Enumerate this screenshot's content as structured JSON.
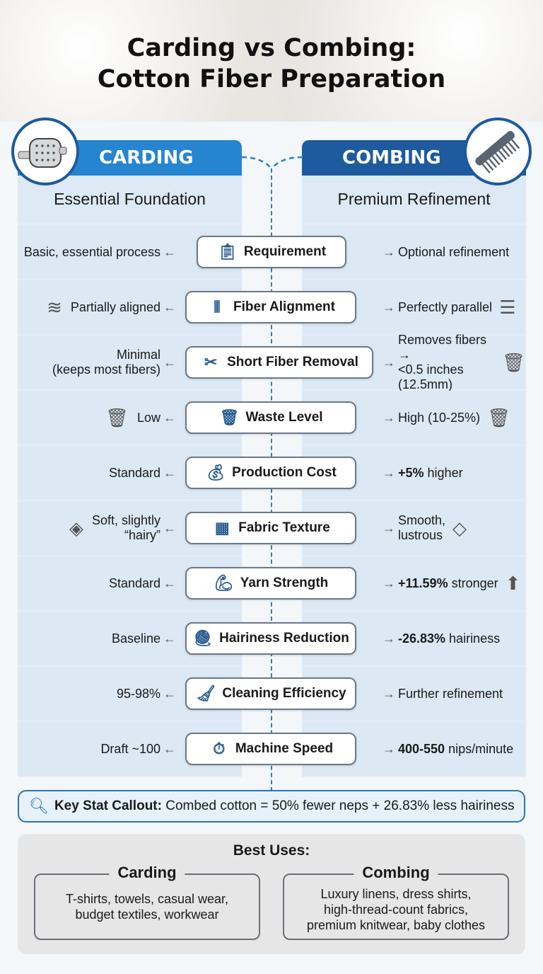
{
  "title_line1": "Carding vs Combing:",
  "title_line2": "Cotton Fiber Preparation",
  "carding": {
    "header": "CARDING",
    "subtitle": "Essential Foundation",
    "icon": "carding-roller-icon"
  },
  "combing": {
    "header": "COMBING",
    "subtitle": "Premium Refinement",
    "icon": "comb-icon"
  },
  "colors": {
    "carding": "#2585d0",
    "combing": "#1d5a9e",
    "panel": "#dce8f3"
  },
  "rows": [
    {
      "label": "Requirement",
      "icon": "clipboard-icon",
      "glyph": "📋",
      "left": "Basic, essential process",
      "right_bold": "",
      "right": "Optional refinement"
    },
    {
      "label": "Fiber Alignment",
      "icon": "fibers-icon",
      "glyph": "⫴",
      "left": "Partially aligned",
      "left_icon": "tangled-fibers-icon",
      "right_bold": "",
      "right": "Perfectly parallel",
      "right_icon": "parallel-lines-icon"
    },
    {
      "label": "Short Fiber Removal",
      "icon": "scissors-icon",
      "glyph": "✂",
      "left": "Minimal\n(keeps most fibers)",
      "right_bold": "",
      "right": "Removes fibers →\n<0.5 inches (12.5mm)",
      "right_icon": "trash-icon"
    },
    {
      "label": "Waste Level",
      "icon": "trash-clock-icon",
      "glyph": "🗑",
      "left": "Low",
      "left_icon": "empty-trash-icon",
      "right_bold": "",
      "right": "High (10-25%)",
      "right_icon": "full-trash-icon"
    },
    {
      "label": "Production Cost",
      "icon": "coins-icon",
      "glyph": "💰",
      "left": "Standard",
      "right_bold": "+5%",
      "right": " higher"
    },
    {
      "label": "Fabric Texture",
      "icon": "fabric-touch-icon",
      "glyph": "▦",
      "left": "Soft, slightly\n“hairy”",
      "left_icon": "hairy-fabric-icon",
      "right_bold": "",
      "right": "Smooth,\nlustrous",
      "right_icon": "smooth-fabric-icon"
    },
    {
      "label": "Yarn Strength",
      "icon": "muscle-spool-icon",
      "glyph": "💪",
      "left": "Standard",
      "right_bold": "+11.59%",
      "right": " stronger",
      "right_icon": "up-arrow-icon"
    },
    {
      "label": "Hairiness Reduction",
      "icon": "yarn-ball-icon",
      "glyph": "🧶",
      "left": "Baseline",
      "right_bold": "-26.83%",
      "right": " hairiness"
    },
    {
      "label": "Cleaning Efficiency",
      "icon": "broom-icon",
      "glyph": "🧹",
      "left": "95-98%",
      "right_bold": "",
      "right": "Further refinement"
    },
    {
      "label": "Machine Speed",
      "icon": "stopwatch-icon",
      "glyph": "⏱",
      "left": "Draft ~100",
      "right_bold": "400-550",
      "right": " nips/minute"
    }
  ],
  "callout": {
    "label": "Key Stat Callout:",
    "text": " Combed cotton = 50% fewer neps + 26.83% less hairiness"
  },
  "best_uses": {
    "title": "Best Uses:",
    "carding_title": "Carding",
    "carding_text": "T-shirts, towels, casual wear,\nbudget textiles, workwear",
    "combing_title": "Combing",
    "combing_text": "Luxury linens, dress shirts,\nhigh-thread-count fabrics,\npremium knitwear, baby clothes"
  }
}
